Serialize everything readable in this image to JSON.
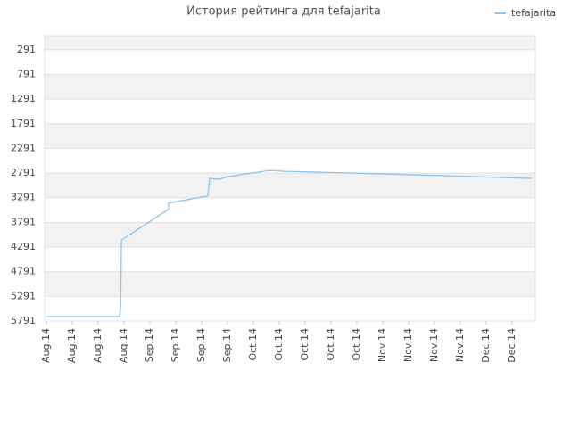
{
  "chart_data": {
    "type": "line",
    "title": "История рейтинга для tefajarita",
    "xlim": [
      -0.07,
      18.9
    ],
    "xticks": [
      {
        "value": 0,
        "label": "Aug.14"
      },
      {
        "value": 1,
        "label": "Aug.14"
      },
      {
        "value": 2,
        "label": "Aug.14"
      },
      {
        "value": 3,
        "label": "Aug.14"
      },
      {
        "value": 4,
        "label": "Sep.14"
      },
      {
        "value": 5,
        "label": "Sep.14"
      },
      {
        "value": 6,
        "label": "Sep.14"
      },
      {
        "value": 7,
        "label": "Sep.14"
      },
      {
        "value": 8,
        "label": "Oct.14"
      },
      {
        "value": 9,
        "label": "Oct.14"
      },
      {
        "value": 10,
        "label": "Oct.14"
      },
      {
        "value": 11,
        "label": "Oct.14"
      },
      {
        "value": 12,
        "label": "Oct.14"
      },
      {
        "value": 13,
        "label": "Nov.14"
      },
      {
        "value": 14,
        "label": "Nov.14"
      },
      {
        "value": 15,
        "label": "Nov.14"
      },
      {
        "value": 16,
        "label": "Nov.14"
      },
      {
        "value": 17,
        "label": "Dec.14"
      },
      {
        "value": 18,
        "label": "Dec.14"
      }
    ],
    "ylim": [
      5791,
      5
    ],
    "yticks": [
      291,
      791,
      1291,
      1791,
      2291,
      2791,
      3291,
      3791,
      4291,
      4791,
      5291,
      5791
    ],
    "grid": true,
    "legend": "top-right",
    "series": [
      {
        "name": "tefajarita",
        "color": "#8cc4ee",
        "x": [
          0,
          2.83,
          2.87,
          2.9,
          4.72,
          4.72,
          6.24,
          6.31,
          6.69,
          7,
          8.62,
          9.24,
          10.62,
          13.03,
          15.45,
          18.76
        ],
        "values": [
          5700,
          5700,
          5500,
          4149,
          3524,
          3399,
          3256,
          2899,
          2917,
          2863,
          2738,
          2756,
          2774,
          2809,
          2845,
          2899
        ]
      }
    ]
  }
}
